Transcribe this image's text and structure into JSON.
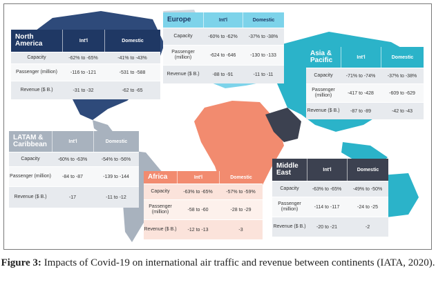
{
  "colors": {
    "north_america": "#1f3864",
    "north_america_map": "#2e4a7a",
    "europe": "#7dd3ea",
    "asia_pacific": "#2bb3c9",
    "latam": "#a8b2be",
    "africa": "#f28b6f",
    "middle_east": "#3c4150",
    "row_light": "#e7eaee",
    "row_white": "#f7f8f9"
  },
  "north_america": {
    "region": "North America",
    "col_intl": "Int'l",
    "col_domestic": "Domestic",
    "rows": [
      {
        "label": "Capacity",
        "intl": "-62% to -65%",
        "domestic": "-41% to -43%"
      },
      {
        "label": "Passenger (million)",
        "intl": "-116 to -121",
        "domestic": "-531 to -588"
      },
      {
        "label": "Revenue ($ B.)",
        "intl": "-31 to -32",
        "domestic": "-62 to -65"
      }
    ]
  },
  "europe": {
    "region": "Europe",
    "col_intl": "Int'l",
    "col_domestic": "Domestic",
    "rows": [
      {
        "label": "Capacity",
        "intl": "-60% to -62%",
        "domestic": "-37% to -38%"
      },
      {
        "label": "Passenger (million)",
        "intl": "-624 to -646",
        "domestic": "-130 to -133"
      },
      {
        "label": "Revenue ($ B.)",
        "intl": "-88 to -91",
        "domestic": "-11 to -11"
      }
    ]
  },
  "asia_pacific": {
    "region": "Asia & Pacific",
    "col_intl": "Int'l",
    "col_domestic": "Domestic",
    "rows": [
      {
        "label": "Capacity",
        "intl": "-71% to -74%",
        "domestic": "-37% to -38%"
      },
      {
        "label": "Passenger (million)",
        "intl": "-417 to -428",
        "domestic": "-609 to -629"
      },
      {
        "label": "Revenue ($ B.)",
        "intl": "-87 to -89",
        "domestic": "-42 to -43"
      }
    ]
  },
  "latam": {
    "region": "LATAM & Caribbean",
    "col_intl": "Int'l",
    "col_domestic": "Domestic",
    "rows": [
      {
        "label": "Capacity",
        "intl": "-60% to -63%",
        "domestic": "-54% to -56%"
      },
      {
        "label": "Passenger (million)",
        "intl": "-84 to -87",
        "domestic": "-139 to -144"
      },
      {
        "label": "Revenue ($ B.)",
        "intl": "-17",
        "domestic": "-11 to -12"
      }
    ]
  },
  "africa": {
    "region": "Africa",
    "col_intl": "Int'l",
    "col_domestic": "Domestic",
    "rows": [
      {
        "label": "Capacity",
        "intl": "-63% to -65%",
        "domestic": "-57% to -59%"
      },
      {
        "label": "Passenger (million)",
        "intl": "-58 to -60",
        "domestic": "-28 to -29"
      },
      {
        "label": "Revenue ($ B.)",
        "intl": "-12 to -13",
        "domestic": "-3"
      }
    ]
  },
  "middle_east": {
    "region": "Middle East",
    "col_intl": "Int'l",
    "col_domestic": "Domestic",
    "rows": [
      {
        "label": "Capacity",
        "intl": "-63% to -65%",
        "domestic": "-49% to -50%"
      },
      {
        "label": "Passenger (million)",
        "intl": "-114 to -117",
        "domestic": "-24 to -25"
      },
      {
        "label": "Revenue ($ B.)",
        "intl": "-20 to -21",
        "domestic": "-2"
      }
    ]
  },
  "caption": {
    "label": "Figure 3:",
    "text": " Impacts of Covid-19 on international air traffic and revenue between continents (IATA, 2020)."
  }
}
